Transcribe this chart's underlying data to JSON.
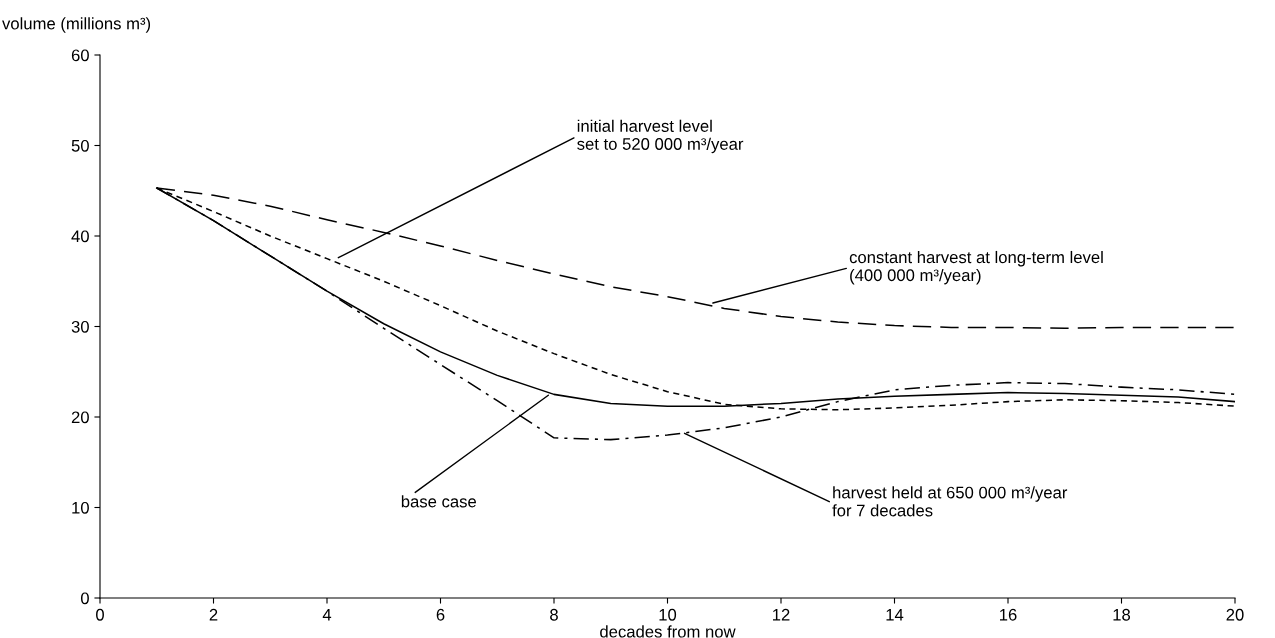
{
  "chart_data": {
    "type": "line",
    "xlabel": "decades from now",
    "ylabel": "volume (millions m³)",
    "x": [
      1,
      2,
      3,
      4,
      5,
      6,
      7,
      8,
      9,
      10,
      11,
      12,
      13,
      14,
      15,
      16,
      17,
      18,
      19,
      20
    ],
    "series": [
      {
        "color": "#000000",
        "line_style": "solid",
        "values": [
          45.3,
          41.7,
          37.8,
          33.9,
          30.3,
          27.2,
          24.6,
          22.5,
          21.5,
          21.2,
          21.2,
          21.5,
          22.0,
          22.3,
          22.5,
          22.7,
          22.6,
          22.4,
          22.2,
          21.7
        ]
      },
      {
        "color": "#000000",
        "line_style": "dashed",
        "values": [
          45.3,
          44.5,
          43.3,
          41.8,
          40.4,
          38.9,
          37.3,
          35.8,
          34.4,
          33.3,
          32.0,
          31.1,
          30.5,
          30.1,
          29.9,
          29.9,
          29.8,
          29.9,
          29.9,
          29.9
        ]
      },
      {
        "color": "#000000",
        "line_style": "dotted",
        "values": [
          45.3,
          42.7,
          40.0,
          37.5,
          35.0,
          32.3,
          29.5,
          27.0,
          24.7,
          22.8,
          21.4,
          20.9,
          20.8,
          21.0,
          21.3,
          21.7,
          21.9,
          21.8,
          21.6,
          21.2
        ]
      },
      {
        "color": "#000000",
        "line_style": "dashdot",
        "values": [
          45.3,
          41.7,
          37.8,
          33.9,
          29.8,
          25.8,
          21.8,
          17.7,
          17.5,
          18.0,
          18.8,
          20.0,
          21.7,
          23.0,
          23.5,
          23.8,
          23.7,
          23.3,
          23.0,
          22.5
        ]
      }
    ],
    "annotations": [
      {
        "text": "initial harvest level\nset to 520 000 m³/year",
        "x": 4.2,
        "y": 37.6
      },
      {
        "text": "constant harvest at long-term level\n(400 000 m³/year)",
        "x": 10.8,
        "y": 32.6
      },
      {
        "text": "base case",
        "x": 7.9,
        "y": 22.4
      },
      {
        "text": "harvest held at 650 000 m³/year\nfor 7 decades",
        "x": 10.3,
        "y": 18.2
      }
    ],
    "xlim": [
      0,
      20
    ],
    "xticks": [
      0,
      2,
      4,
      6,
      8,
      10,
      12,
      14,
      16,
      18,
      20
    ],
    "ylim": [
      0,
      60
    ],
    "yticks": [
      0,
      10,
      20,
      30,
      40,
      50,
      60
    ],
    "grid": false,
    "legend": false,
    "marker": "none"
  }
}
